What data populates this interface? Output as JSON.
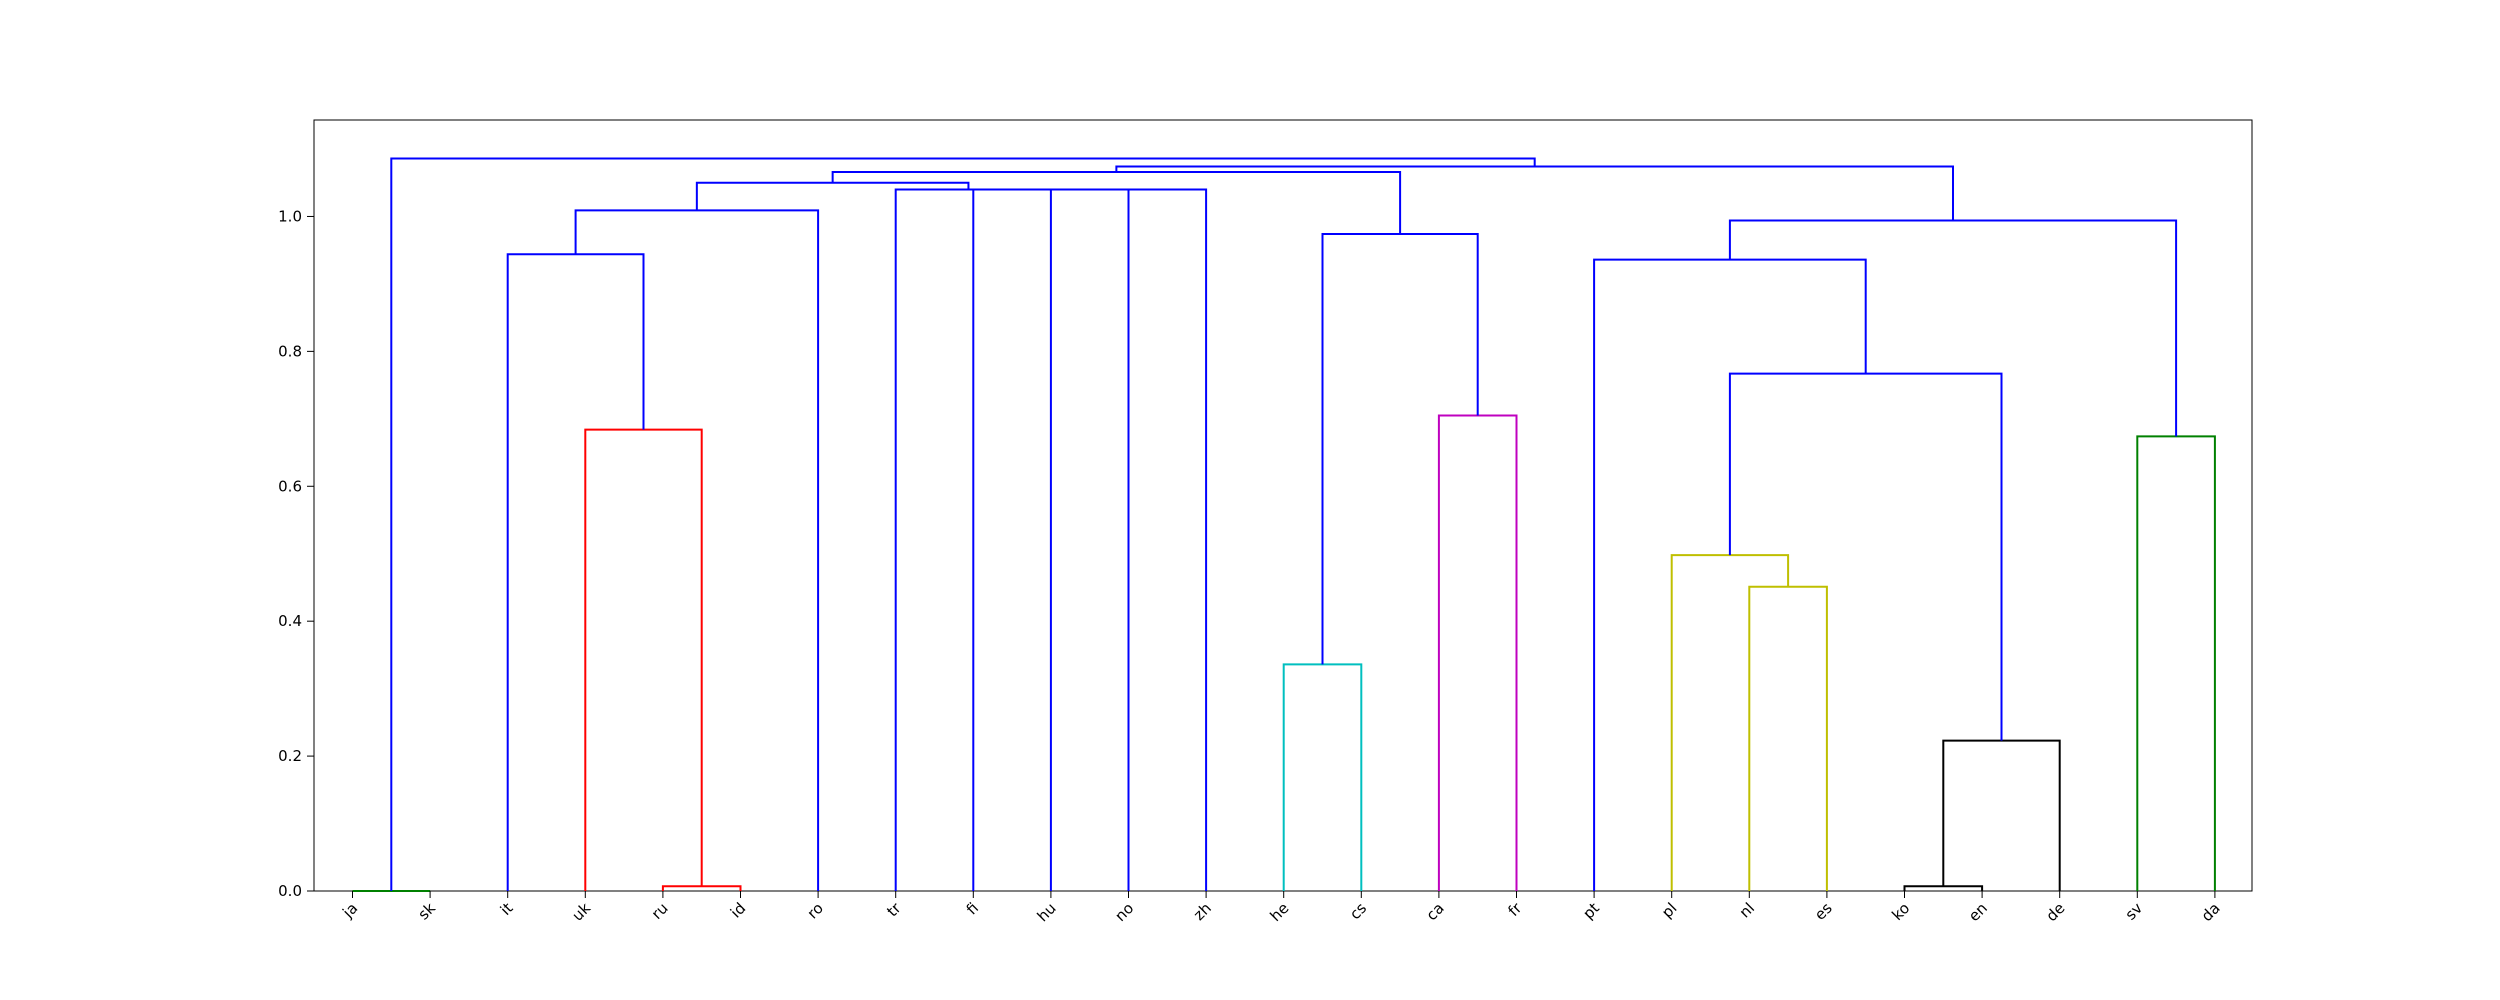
{
  "chart_data": {
    "type": "dendrogram",
    "leaves": [
      "ja",
      "sk",
      "it",
      "uk",
      "ru",
      "id",
      "ro",
      "tr",
      "fi",
      "hu",
      "no",
      "zh",
      "he",
      "cs",
      "ca",
      "fr",
      "pt",
      "pl",
      "nl",
      "es",
      "ko",
      "en",
      "de",
      "sv",
      "da"
    ],
    "yticks": [
      0.0,
      0.2,
      0.4,
      0.6,
      0.8,
      1.0
    ],
    "ytick_labels": [
      "0.0",
      "0.2",
      "0.4",
      "0.6",
      "0.8",
      "1.0"
    ],
    "ylim": [
      0,
      1.143
    ],
    "colors": {
      "above_threshold": "#0000ff",
      "green": "#008000",
      "red": "#ff0000",
      "cyan": "#00bfbf",
      "magenta": "#bf00bf",
      "yellow": "#bfbf00",
      "black": "#000000"
    },
    "merges": [
      {
        "left": "ja",
        "right": "sk",
        "height": 0.0,
        "color": "green"
      },
      {
        "left": "ru",
        "right": "id",
        "height": 0.007,
        "color": "red"
      },
      {
        "left": "ko",
        "right": "en",
        "height": 0.007,
        "color": "black"
      },
      {
        "left": "en+ko",
        "right": "de",
        "height": 0.223,
        "color": "black"
      },
      {
        "left": "he",
        "right": "cs",
        "height": 0.336,
        "color": "cyan"
      },
      {
        "left": "nl",
        "right": "es",
        "height": 0.451,
        "color": "yellow"
      },
      {
        "left": "pl",
        "right": "nl+es",
        "height": 0.498,
        "color": "yellow"
      },
      {
        "left": "sv",
        "right": "da",
        "height": 0.674,
        "color": "green"
      },
      {
        "left": "uk",
        "right": "ru+id",
        "height": 0.684,
        "color": "red"
      },
      {
        "left": "ca",
        "right": "fr",
        "height": 0.705,
        "color": "magenta"
      },
      {
        "left": "pl+nl+es",
        "right": "ko+en+de",
        "height": 0.767,
        "color": "above_threshold"
      },
      {
        "left": "pt",
        "right": "pl..de",
        "height": 0.936,
        "color": "above_threshold"
      },
      {
        "left": "it",
        "right": "uk+ru+id",
        "height": 0.944,
        "color": "above_threshold"
      },
      {
        "left": "he+cs",
        "right": "ca+fr",
        "height": 0.974,
        "color": "above_threshold"
      },
      {
        "left": "pt..de",
        "right": "sv+da",
        "height": 0.994,
        "color": "above_threshold"
      },
      {
        "left": "it..id",
        "right": "ro",
        "height": 1.009,
        "color": "above_threshold"
      },
      {
        "left": "no",
        "right": "zh",
        "height": 1.04,
        "color": "above_threshold"
      },
      {
        "left": "hu",
        "right": "no+zh",
        "height": 1.04,
        "color": "above_threshold"
      },
      {
        "left": "fi",
        "right": "hu+no+zh",
        "height": 1.04,
        "color": "above_threshold"
      },
      {
        "left": "tr",
        "right": "fi..zh",
        "height": 1.04,
        "color": "above_threshold"
      },
      {
        "left": "it..ro",
        "right": "tr..zh",
        "height": 1.05,
        "color": "above_threshold"
      },
      {
        "left": "it..zh",
        "right": "he..fr",
        "height": 1.066,
        "color": "above_threshold"
      },
      {
        "left": "it..fr",
        "right": "pt..da",
        "height": 1.074,
        "color": "above_threshold"
      },
      {
        "left": "ja+sk",
        "right": "it..da",
        "height": 1.086,
        "color": "above_threshold"
      }
    ]
  }
}
